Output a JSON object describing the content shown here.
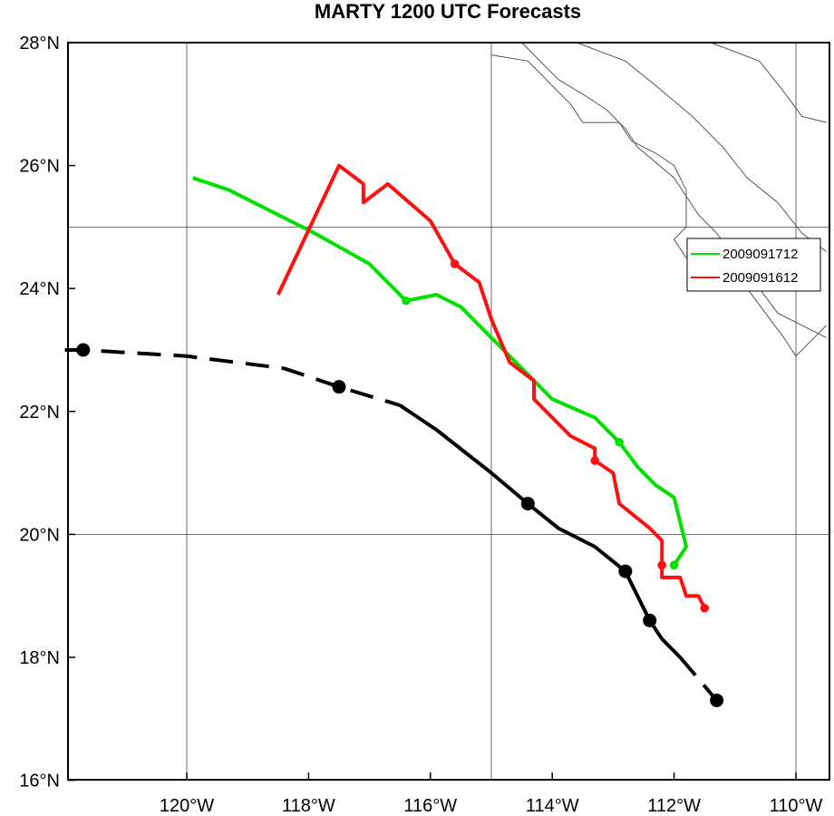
{
  "title": "MARTY 1200 UTC Forecasts",
  "map": {
    "lon_range": [
      -122,
      -109.5
    ],
    "lat_range": [
      16,
      28
    ],
    "lat_ticks": [
      {
        "value": 28,
        "label": "28°N"
      },
      {
        "value": 26,
        "label": "26°N"
      },
      {
        "value": 24,
        "label": "24°N"
      },
      {
        "value": 22,
        "label": "22°N"
      },
      {
        "value": 20,
        "label": "20°N"
      },
      {
        "value": 18,
        "label": "18°N"
      },
      {
        "value": 16,
        "label": "16°N"
      }
    ],
    "lon_ticks": [
      {
        "value": -120,
        "label": "120°W"
      },
      {
        "value": -118,
        "label": "118°W"
      },
      {
        "value": -116,
        "label": "116°W"
      },
      {
        "value": -114,
        "label": "114°W"
      },
      {
        "value": -112,
        "label": "112°W"
      },
      {
        "value": -110,
        "label": "110°W"
      }
    ],
    "grid_lons": [
      -120,
      -115,
      -110
    ],
    "grid_lats": [
      25,
      20
    ],
    "coastlines": [
      [
        [
          -115.0,
          27.8
        ],
        [
          -114.4,
          27.7
        ],
        [
          -114.0,
          27.3
        ],
        [
          -113.7,
          27.0
        ],
        [
          -113.5,
          26.7
        ],
        [
          -112.9,
          26.7
        ],
        [
          -112.7,
          26.4
        ],
        [
          -112.3,
          26.2
        ],
        [
          -112.0,
          26.0
        ],
        [
          -111.8,
          25.6
        ],
        [
          -111.8,
          25.0
        ],
        [
          -112.0,
          24.8
        ],
        [
          -111.8,
          24.5
        ],
        [
          -111.5,
          24.5
        ],
        [
          -111.2,
          24.3
        ],
        [
          -110.8,
          24.0
        ],
        [
          -110.5,
          23.6
        ],
        [
          -110.2,
          23.2
        ],
        [
          -110.0,
          22.9
        ],
        [
          -109.8,
          23.1
        ],
        [
          -109.5,
          23.4
        ]
      ],
      [
        [
          -114.5,
          28.0
        ],
        [
          -113.9,
          27.4
        ],
        [
          -113.4,
          27.1
        ],
        [
          -113.1,
          26.9
        ],
        [
          -112.8,
          26.6
        ],
        [
          -112.6,
          26.3
        ],
        [
          -112.0,
          25.8
        ],
        [
          -111.6,
          25.2
        ],
        [
          -111.3,
          24.9
        ],
        [
          -111.0,
          24.5
        ],
        [
          -110.6,
          24.0
        ],
        [
          -110.3,
          23.6
        ],
        [
          -109.7,
          23.3
        ],
        [
          -109.5,
          23.2
        ]
      ],
      [
        [
          -113.6,
          28.0
        ],
        [
          -112.8,
          27.7
        ],
        [
          -112.3,
          27.3
        ],
        [
          -111.7,
          26.8
        ],
        [
          -111.2,
          26.3
        ],
        [
          -110.8,
          25.8
        ],
        [
          -110.3,
          25.4
        ],
        [
          -109.9,
          24.9
        ],
        [
          -109.5,
          24.6
        ]
      ],
      [
        [
          -111.4,
          28.0
        ],
        [
          -110.6,
          27.7
        ],
        [
          -110.2,
          27.2
        ],
        [
          -109.9,
          26.8
        ],
        [
          -109.5,
          26.7
        ]
      ]
    ]
  },
  "series": [
    {
      "name": "2009091712",
      "color": "#00e000",
      "track": [
        [
          -119.9,
          25.8
        ],
        [
          -119.3,
          25.6
        ],
        [
          -118.7,
          25.3
        ],
        [
          -117.9,
          24.9
        ],
        [
          -117.0,
          24.4
        ],
        [
          -116.4,
          23.8
        ],
        [
          -115.9,
          23.9
        ],
        [
          -115.5,
          23.7
        ],
        [
          -114.9,
          23.1
        ],
        [
          -114.5,
          22.7
        ],
        [
          -114.0,
          22.2
        ],
        [
          -113.3,
          21.9
        ],
        [
          -112.9,
          21.5
        ],
        [
          -112.6,
          21.1
        ],
        [
          -112.3,
          20.8
        ],
        [
          -112.0,
          20.6
        ],
        [
          -111.9,
          20.2
        ],
        [
          -111.8,
          19.8
        ],
        [
          -112.0,
          19.5
        ]
      ],
      "markers": [
        [
          -116.4,
          23.8
        ],
        [
          -112.9,
          21.5
        ],
        [
          -112.0,
          19.5
        ]
      ]
    },
    {
      "name": "2009091612",
      "color": "#ff1010",
      "track": [
        [
          -118.5,
          23.9
        ],
        [
          -117.5,
          26.0
        ],
        [
          -117.1,
          25.7
        ],
        [
          -117.1,
          25.4
        ],
        [
          -116.7,
          25.7
        ],
        [
          -116.0,
          25.1
        ],
        [
          -115.6,
          24.4
        ],
        [
          -115.2,
          24.1
        ],
        [
          -115.0,
          23.5
        ],
        [
          -114.7,
          22.8
        ],
        [
          -114.3,
          22.5
        ],
        [
          -114.3,
          22.2
        ],
        [
          -113.7,
          21.6
        ],
        [
          -113.3,
          21.4
        ],
        [
          -113.3,
          21.2
        ],
        [
          -113.0,
          21.0
        ],
        [
          -112.9,
          20.5
        ],
        [
          -112.4,
          20.1
        ],
        [
          -112.2,
          19.9
        ],
        [
          -112.2,
          19.5
        ],
        [
          -112.2,
          19.3
        ],
        [
          -111.9,
          19.3
        ],
        [
          -111.8,
          19.0
        ],
        [
          -111.6,
          19.0
        ],
        [
          -111.5,
          18.8
        ]
      ],
      "markers": [
        [
          -115.6,
          24.4
        ],
        [
          -113.3,
          21.2
        ],
        [
          -112.2,
          19.5
        ],
        [
          -111.5,
          18.8
        ]
      ]
    }
  ],
  "best_track": {
    "color": "#000000",
    "dashed_start": [
      [
        -122.0,
        23.0
      ],
      [
        -121.7,
        23.0
      ],
      [
        -120.0,
        22.9
      ],
      [
        -118.4,
        22.7
      ],
      [
        -117.5,
        22.4
      ],
      [
        -116.5,
        22.1
      ]
    ],
    "solid": [
      [
        -116.5,
        22.1
      ],
      [
        -115.9,
        21.7
      ],
      [
        -115.0,
        21.0
      ],
      [
        -114.4,
        20.5
      ],
      [
        -113.9,
        20.1
      ],
      [
        -113.3,
        19.8
      ],
      [
        -112.8,
        19.4
      ],
      [
        -112.4,
        18.6
      ],
      [
        -112.2,
        18.3
      ],
      [
        -111.9,
        18.0
      ]
    ],
    "dashed_end": [
      [
        -111.9,
        18.0
      ],
      [
        -111.3,
        17.3
      ]
    ],
    "markers": [
      [
        -121.7,
        23.0
      ],
      [
        -117.5,
        22.4
      ],
      [
        -114.4,
        20.5
      ],
      [
        -112.8,
        19.4
      ],
      [
        -112.4,
        18.6
      ],
      [
        -111.3,
        17.3
      ]
    ]
  }
}
